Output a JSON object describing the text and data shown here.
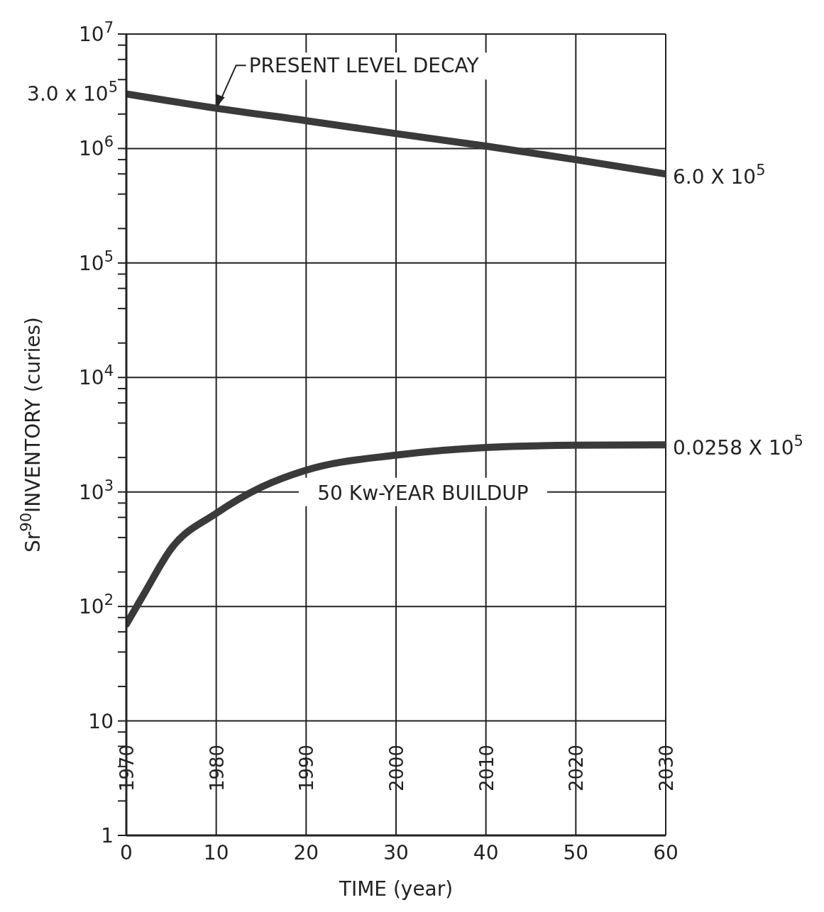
{
  "chart_data": {
    "type": "line",
    "xlabel": "TIME (year)",
    "ylabel": "Sr$^{90}$INVENTORY (curies)",
    "series": [
      {
        "name": null,
        "color": "#3a3a3a",
        "x": [
          0,
          10,
          20,
          30,
          40,
          50,
          60
        ],
        "values": [
          3000000,
          2250000,
          1750000,
          1350000,
          1050000,
          800000,
          600000
        ]
      },
      {
        "name": null,
        "color": "#3a3a3a",
        "x": [
          0,
          2,
          5,
          10,
          15,
          20,
          30,
          40,
          50,
          60
        ],
        "values": [
          70,
          130,
          320,
          650,
          1100,
          1550,
          2100,
          2450,
          2560,
          2580
        ]
      }
    ],
    "xlim": [
      0,
      60
    ],
    "xticks": [
      0,
      10,
      20,
      30,
      40,
      50,
      60
    ],
    "x2lim": [
      1970,
      2030
    ],
    "x2ticks": [
      1970,
      1980,
      1990,
      2000,
      2010,
      2020,
      2030
    ],
    "ylim": [
      1,
      10000000
    ],
    "log": "y",
    "yticks": [
      {
        "value": 1,
        "label": "1"
      },
      {
        "value": 2,
        "label": null
      },
      {
        "value": 4,
        "label": null
      },
      {
        "value": 6,
        "label": null
      },
      {
        "value": 8,
        "label": null
      },
      {
        "value": 10,
        "label": "10"
      },
      {
        "value": 20,
        "label": null
      },
      {
        "value": 40,
        "label": null
      },
      {
        "value": 60,
        "label": null
      },
      {
        "value": 80,
        "label": null
      },
      {
        "value": 100,
        "label": "10$^{2}$"
      },
      {
        "value": 200,
        "label": null
      },
      {
        "value": 400,
        "label": null
      },
      {
        "value": 600,
        "label": null
      },
      {
        "value": 800,
        "label": null
      },
      {
        "value": 1000,
        "label": "10$^{3}$"
      },
      {
        "value": 2000,
        "label": null
      },
      {
        "value": 4000,
        "label": null
      },
      {
        "value": 6000,
        "label": null
      },
      {
        "value": 8000,
        "label": null
      },
      {
        "value": 10000,
        "label": "10$^{4}$"
      },
      {
        "value": 20000,
        "label": null
      },
      {
        "value": 40000,
        "label": null
      },
      {
        "value": 60000,
        "label": null
      },
      {
        "value": 80000,
        "label": null
      },
      {
        "value": 100000,
        "label": "10$^{5}$"
      },
      {
        "value": 200000,
        "label": null
      },
      {
        "value": 400000,
        "label": null
      },
      {
        "value": 600000,
        "label": null
      },
      {
        "value": 800000,
        "label": null
      },
      {
        "value": 1000000,
        "label": "10$^{6}$"
      },
      {
        "value": 2000000,
        "label": null
      },
      {
        "value": 4000000,
        "label": null
      },
      {
        "value": 6000000,
        "label": null
      },
      {
        "value": 8000000,
        "label": null
      },
      {
        "value": 10000000,
        "label": "10$^{7}$"
      }
    ],
    "grid": true,
    "legend": false,
    "marker": "none",
    "line_style": "solid",
    "annotations": [
      {
        "text": "PRESENT LEVEL DECAY",
        "x": 10,
        "y": 2200000
      },
      {
        "text": "3.0 x 10$^{5}$",
        "x": 0,
        "y": 3000000
      },
      {
        "text": "6.0 X 10$^{5}$",
        "x": 60,
        "y": 600000
      },
      "50 Kw-YEAR BUILDUP",
      {
        "text": "0.0258 X 10$^{5}$",
        "x": 60,
        "y": 2580
      }
    ]
  }
}
